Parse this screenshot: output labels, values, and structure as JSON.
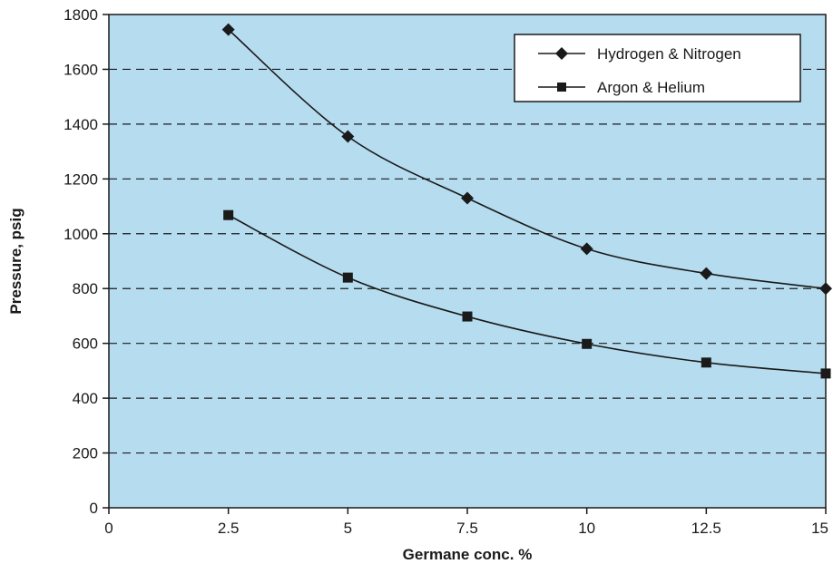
{
  "chart_data": {
    "type": "line",
    "title": "",
    "xlabel": "Germane conc. %",
    "ylabel": "Pressure, psig",
    "xlim": [
      0,
      15
    ],
    "ylim": [
      0,
      1800
    ],
    "x_ticks": [
      0,
      2.5,
      5,
      7.5,
      10,
      12.5,
      15
    ],
    "x_tick_labels": [
      "0",
      "2.5",
      "5",
      "7.5",
      "10",
      "12.5",
      "15"
    ],
    "y_ticks": [
      0,
      200,
      400,
      600,
      800,
      1000,
      1200,
      1400,
      1600,
      1800
    ],
    "y_tick_labels": [
      "0",
      "200",
      "400",
      "600",
      "800",
      "1000",
      "1200",
      "1400",
      "1600",
      "1800"
    ],
    "grid": "horizontal dashed",
    "legend_position": "top-right",
    "plot_background": "#b6dcf0",
    "series": [
      {
        "name": "Hydrogen & Nitrogen",
        "marker": "diamond",
        "color": "#1a1a1a",
        "x": [
          2.5,
          5,
          7.5,
          10,
          12.5,
          15
        ],
        "values": [
          1745,
          1355,
          1130,
          945,
          855,
          800
        ]
      },
      {
        "name": "Argon & Helium",
        "marker": "square",
        "color": "#1a1a1a",
        "x": [
          2.5,
          5,
          7.5,
          10,
          12.5,
          15
        ],
        "values": [
          1068,
          840,
          698,
          598,
          530,
          490
        ]
      }
    ]
  }
}
